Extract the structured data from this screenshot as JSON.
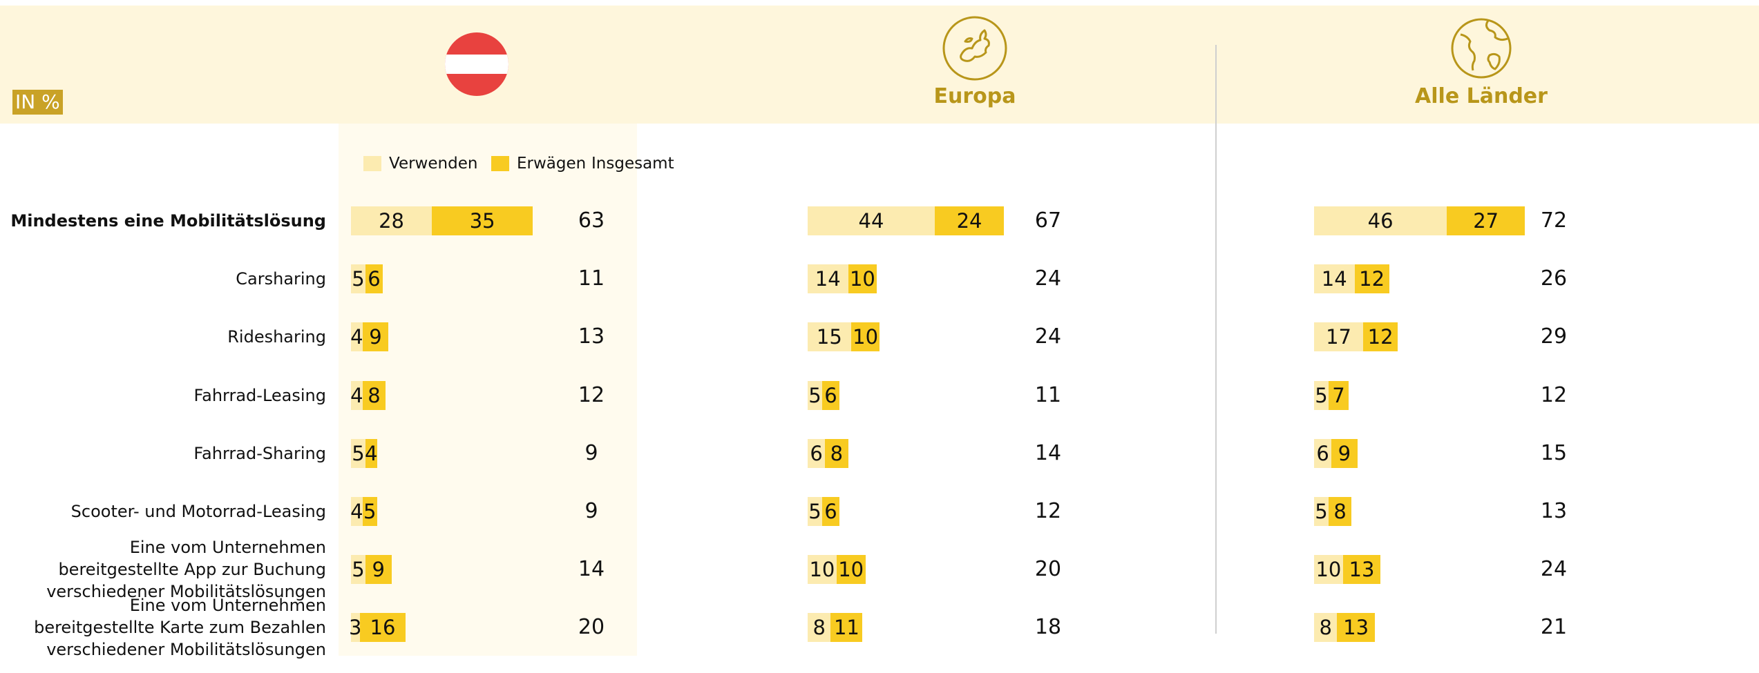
{
  "unit_label": "IN %",
  "chart_data": {
    "type": "bar",
    "orientation": "horizontal",
    "stacked": true,
    "xlim": [
      0,
      100
    ],
    "categories": [
      "Mindestens eine Mobilitätslösung",
      "Carsharing",
      "Ridesharing",
      "Fahrrad-Leasing",
      "Fahrrad-Sharing",
      "Scooter- und Motorrad-Leasing",
      "Eine vom Unternehmen bereitgestellte App zur Buchung verschiedener Mobilitätslösungen",
      "Eine vom Unternehmen bereitgestellte Karte zum Bezahlen verschiedener Mobilitätslösungen"
    ],
    "series": [
      {
        "name": "Verwenden",
        "color": "#fcebb0"
      },
      {
        "name": "Erwägen",
        "color": "#f8cb21"
      },
      {
        "name": "Insgesamt"
      }
    ],
    "panels": [
      {
        "values": [
          [
            28,
            5,
            4,
            4,
            5,
            4,
            5,
            3
          ],
          [
            35,
            6,
            9,
            8,
            4,
            5,
            9,
            16
          ],
          [
            63,
            11,
            13,
            12,
            9,
            9,
            14,
            20
          ]
        ]
      },
      {
        "title": "Europa",
        "values": [
          [
            44,
            14,
            15,
            5,
            6,
            5,
            10,
            8
          ],
          [
            24,
            10,
            10,
            6,
            8,
            6,
            10,
            11
          ],
          [
            67,
            24,
            24,
            11,
            14,
            12,
            20,
            18
          ]
        ]
      },
      {
        "title": "Alle Länder",
        "values": [
          [
            46,
            14,
            17,
            5,
            6,
            5,
            10,
            8
          ],
          [
            27,
            12,
            12,
            7,
            9,
            8,
            13,
            13
          ],
          [
            72,
            26,
            29,
            12,
            15,
            13,
            24,
            21
          ]
        ]
      }
    ]
  }
}
